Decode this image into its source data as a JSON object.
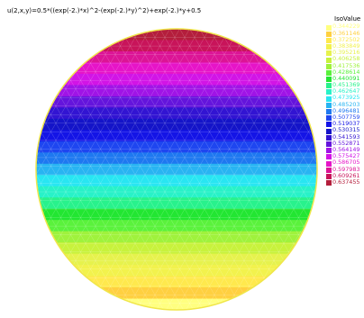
{
  "title": "u(2,x,y)=0.5*((exp(-2.)*x)^2-(exp(-2.)*y)^2)+exp(-2.)*y+0.5",
  "chart_data": {
    "type": "heatmap",
    "title": "u(2,x,y)=0.5*((exp(-2.)*x)^2-(exp(-2.)*y)^2)+exp(-2.)*y+0.5",
    "domain": "disk",
    "mesh": "triangulated",
    "gradient_direction": "values increase from bottom (yellow) to top (crimson)",
    "legend_title": "IsoValue",
    "legend_placement": "top-right",
    "levels": [
      {
        "value": "0.344229",
        "color": "#ffff80"
      },
      {
        "value": "0.361146",
        "color": "#ffd040"
      },
      {
        "value": "0.372502",
        "color": "#ffe94d"
      },
      {
        "value": "0.383849",
        "color": "#f2f24d"
      },
      {
        "value": "0.395216",
        "color": "#e6f24d"
      },
      {
        "value": "0.406258",
        "color": "#c8f23c"
      },
      {
        "value": "0.417536",
        "color": "#9ff23c"
      },
      {
        "value": "0.428614",
        "color": "#5af23c"
      },
      {
        "value": "0.440091",
        "color": "#22e632"
      },
      {
        "value": "0.451369",
        "color": "#28f28c"
      },
      {
        "value": "0.462647",
        "color": "#28f2c8"
      },
      {
        "value": "0.473925",
        "color": "#28e6f2"
      },
      {
        "value": "0.485203",
        "color": "#28b4f2"
      },
      {
        "value": "0.496481",
        "color": "#1e78f0"
      },
      {
        "value": "0.507759",
        "color": "#1e46f0"
      },
      {
        "value": "0.519037",
        "color": "#1414e6"
      },
      {
        "value": "0.530315",
        "color": "#1414c8"
      },
      {
        "value": "0.541593",
        "color": "#3214d2"
      },
      {
        "value": "0.552871",
        "color": "#6414dc"
      },
      {
        "value": "0.564149",
        "color": "#a014e6"
      },
      {
        "value": "0.575427",
        "color": "#d214e6"
      },
      {
        "value": "0.586705",
        "color": "#e614c8"
      },
      {
        "value": "0.597983",
        "color": "#dc1496"
      },
      {
        "value": "0.609261",
        "color": "#c8145a"
      },
      {
        "value": "0.637455",
        "color": "#b41e3c"
      }
    ]
  }
}
